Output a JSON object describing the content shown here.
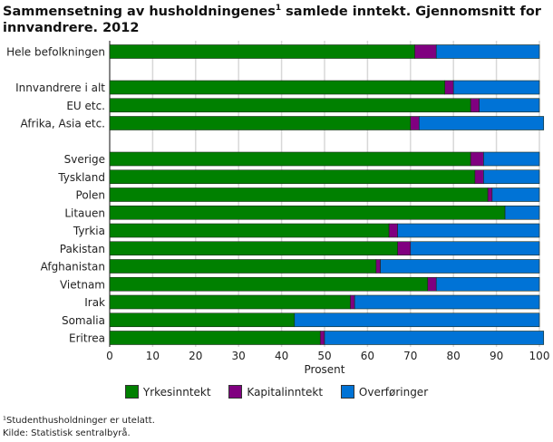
{
  "title": {
    "main": "Sammensetning av husholdningenes",
    "sup": "1",
    "rest": " samlede inntekt. Gjennomsnitt for innvandrere. 2012"
  },
  "chart_data": {
    "type": "bar",
    "orientation": "horizontal",
    "stacked": true,
    "groups": [
      [
        "Hele befolkningen"
      ],
      [
        "Innvandrere i alt",
        "EU etc.",
        "Afrika, Asia etc."
      ],
      [
        "Sverige",
        "Tyskland",
        "Polen",
        "Litauen",
        "Tyrkia",
        "Pakistan",
        "Afghanistan",
        "Vietnam",
        "Irak",
        "Somalia",
        "Eritrea"
      ]
    ],
    "categories": [
      "Hele befolkningen",
      "Innvandrere i alt",
      "EU etc.",
      "Afrika, Asia etc.",
      "Sverige",
      "Tyskland",
      "Polen",
      "Litauen",
      "Tyrkia",
      "Pakistan",
      "Afghanistan",
      "Vietnam",
      "Irak",
      "Somalia",
      "Eritrea"
    ],
    "series": [
      {
        "name": "Yrkesinntekt",
        "color": "#008000",
        "values": [
          71,
          78,
          84,
          70,
          84,
          85,
          88,
          92,
          65,
          67,
          62,
          74,
          56,
          43,
          49
        ]
      },
      {
        "name": "Kapitalinntekt",
        "color": "#800080",
        "values": [
          5,
          2,
          2,
          2,
          3,
          2,
          1,
          0,
          2,
          3,
          1,
          2,
          1,
          0,
          1
        ]
      },
      {
        "name": "Overføringer",
        "color": "#0073d6",
        "values": [
          24,
          20,
          14,
          29,
          13,
          13,
          11,
          8,
          33,
          30,
          37,
          24,
          43,
          57,
          51
        ]
      }
    ],
    "xlabel": "Prosent",
    "xlim": [
      0,
      100
    ],
    "xticks": [
      "0",
      "10",
      "20",
      "30",
      "40",
      "50",
      "60",
      "70",
      "80",
      "90",
      "100"
    ],
    "grid": true,
    "legend": "bottom"
  },
  "footnotes": [
    "¹Studenthusholdninger er utelatt.",
    "Kilde: Statistisk sentralbyrå."
  ]
}
